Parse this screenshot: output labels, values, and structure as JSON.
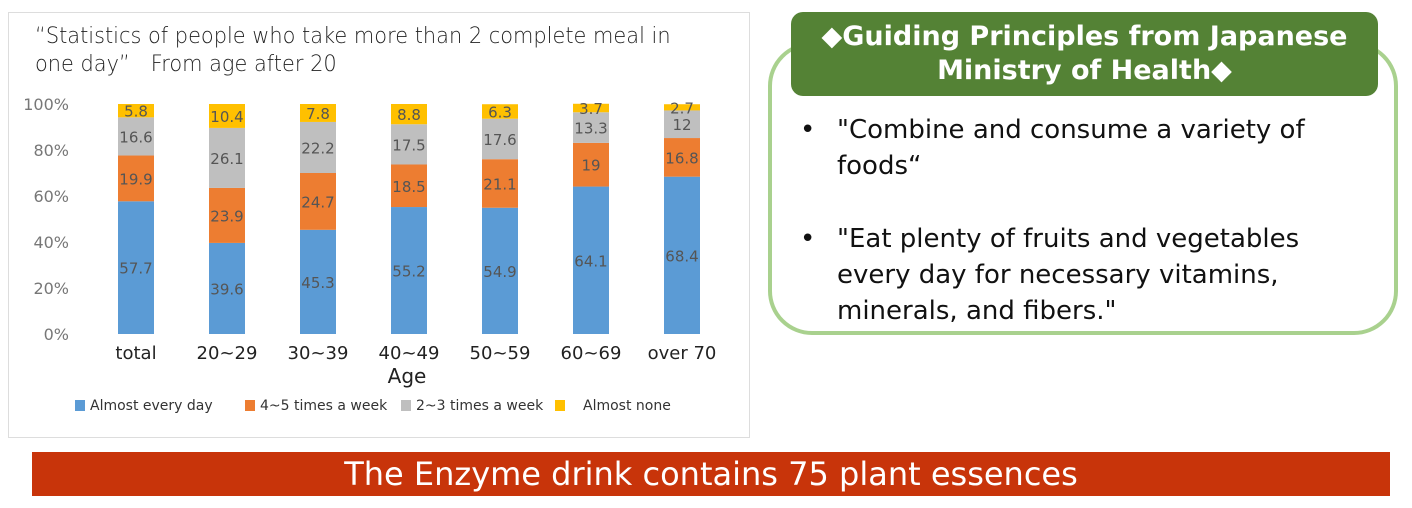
{
  "chart_data": {
    "type": "bar",
    "stacked": true,
    "title": "“Statistics of people who take more than 2 complete meal in one day”　From age after 20",
    "xlabel": "Age",
    "ylabel": "",
    "ylim": [
      0,
      100
    ],
    "yticks": [
      "0%",
      "20%",
      "40%",
      "60%",
      "80%",
      "100%"
    ],
    "categories": [
      "total",
      "20~29",
      "30~39",
      "40~49",
      "50~59",
      "60~69",
      "over 70"
    ],
    "legend_position": "bottom",
    "grid": false,
    "series": [
      {
        "name": "Almost every day",
        "color": "#5b9bd5",
        "values": [
          57.7,
          39.6,
          45.3,
          55.2,
          54.9,
          64.1,
          68.4
        ]
      },
      {
        "name": "4~5 times a week",
        "color": "#ed7d31",
        "values": [
          19.9,
          23.9,
          24.7,
          18.5,
          21.1,
          19,
          16.8
        ]
      },
      {
        "name": "2~3 times a week",
        "color": "#bfbfbf",
        "values": [
          16.6,
          26.1,
          22.2,
          17.5,
          17.6,
          13.3,
          12
        ]
      },
      {
        "name": "Almost none",
        "color": "#ffc000",
        "values": [
          5.8,
          10.4,
          7.8,
          8.8,
          6.3,
          3.7,
          2.7
        ]
      }
    ]
  },
  "panel": {
    "header": "◆Guiding Principles from Japanese Ministry of Health◆",
    "bullets": [
      "\"Combine and consume a variety of foods“",
      "\"Eat plenty of fruits and vegetables every day for necessary vitamins, minerals, and fibers.\""
    ],
    "header_color": "#548235",
    "border_color": "#a9d18e"
  },
  "banner": {
    "text": "The Enzyme drink contains 75 plant essences",
    "color": "#c8340a"
  }
}
